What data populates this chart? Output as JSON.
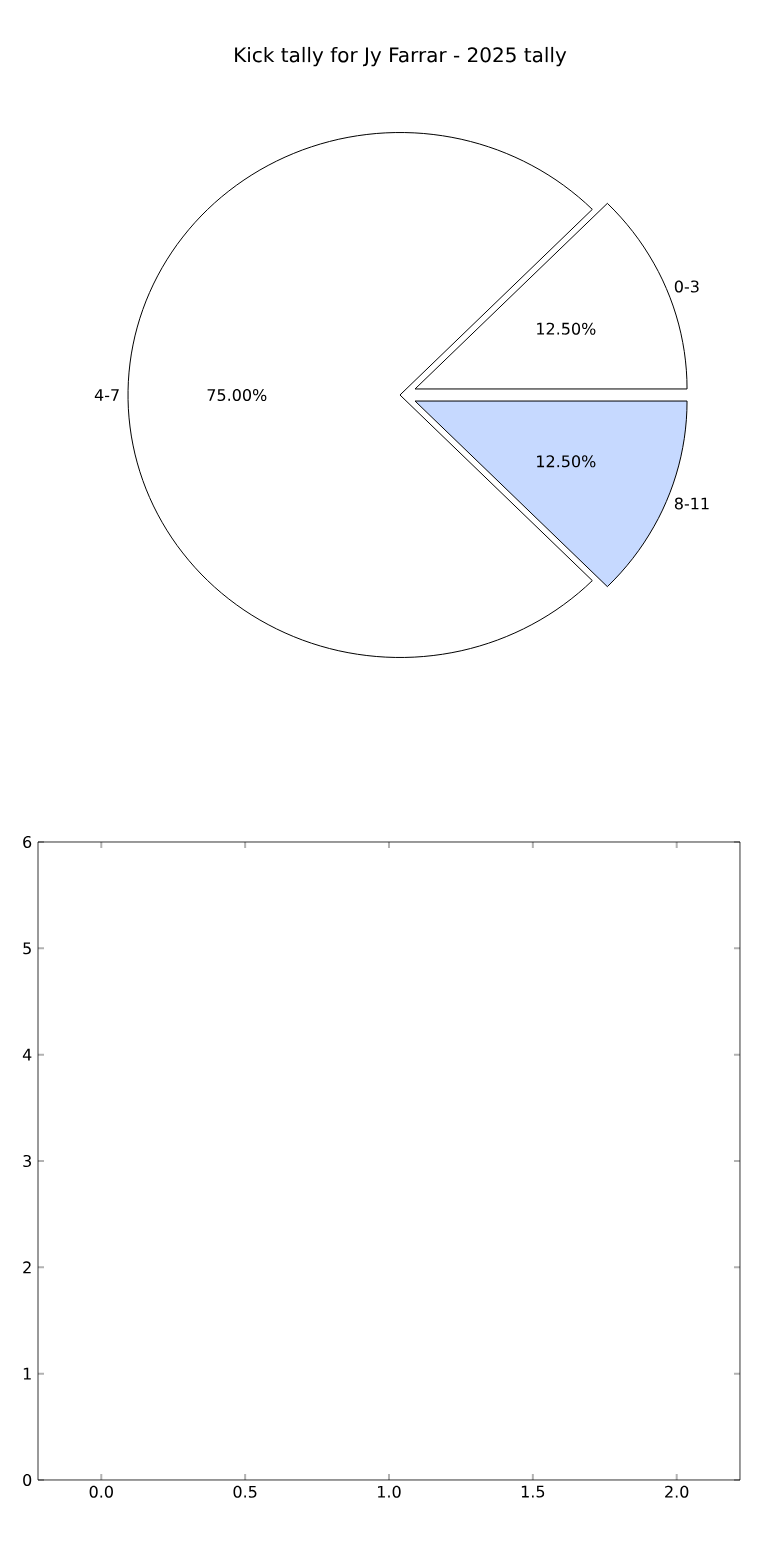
{
  "chart_data": [
    {
      "type": "pie",
      "title": "Kick tally for Jy Farrar - 2025 tally",
      "categories": [
        "0-3",
        "4-7",
        "8-11"
      ],
      "values": [
        12.5,
        75,
        12.5
      ],
      "colors": [
        "#ffffff",
        "#ffffff",
        "#c6d9ff"
      ],
      "value_labels": [
        "12.50%",
        "75.00%",
        "12.50%"
      ]
    },
    {
      "type": "scatter",
      "xlim": [
        -0.22,
        2.22
      ],
      "ylim": [
        0,
        6
      ],
      "xticks": [
        {
          "value": 0,
          "label": "0.0"
        },
        {
          "value": 0.5,
          "label": "0.5"
        },
        {
          "value": 1,
          "label": "1.0"
        },
        {
          "value": 1.5,
          "label": "1.5"
        },
        {
          "value": 2,
          "label": "2.0"
        }
      ],
      "yticks": [
        0,
        1,
        2,
        3,
        4,
        5,
        6
      ]
    }
  ]
}
